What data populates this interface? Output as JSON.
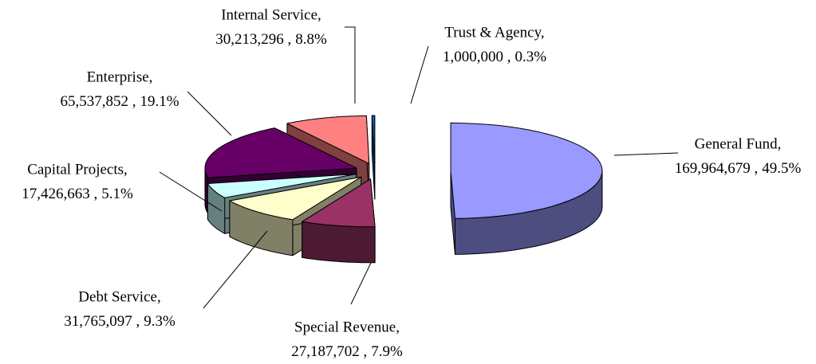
{
  "chart_data": {
    "type": "pie3d",
    "categories": [
      "General Fund,",
      "Special Revenue,",
      "Debt Service,",
      "Capital Projects,",
      "Enterprise,",
      "Internal Service,",
      "Trust & Agency,"
    ],
    "values": [
      169964679,
      27187702,
      31765097,
      17426663,
      65537852,
      30213296,
      1000000
    ],
    "value_labels": [
      "169,964,679 ,",
      "27,187,702 ,",
      "31,765,097 ,",
      "17,426,663 ,",
      "65,537,852 ,",
      "30,213,296 ,",
      "1,000,000 ,"
    ],
    "percents": [
      49.5,
      7.9,
      9.3,
      5.1,
      19.1,
      8.8,
      0.3
    ],
    "percent_labels": [
      "49.5%",
      "7.9%",
      "9.3%",
      "5.1%",
      "19.1%",
      "8.8%",
      "0.3%"
    ],
    "colors": [
      "#9999ff",
      "#993366",
      "#ffffcc",
      "#ccffff",
      "#660066",
      "#ff8080",
      "#0066cc"
    ]
  }
}
